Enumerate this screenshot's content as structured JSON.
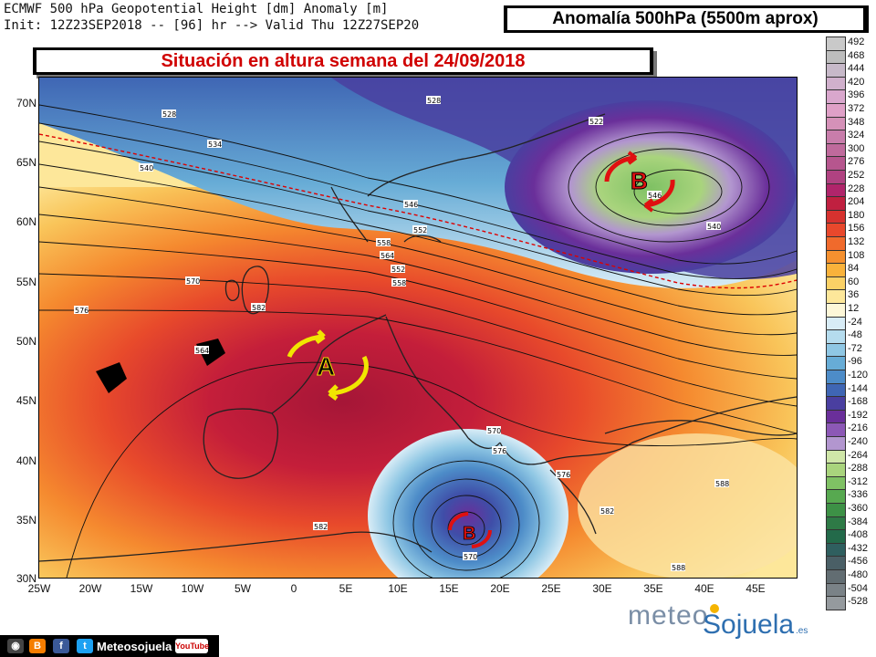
{
  "header": {
    "line1": "ECMWF 500 hPa Geopotential Height [dm] Anomaly [m]",
    "line2": "Init: 12Z23SEP2018 -- [96] hr --> Valid Thu 12Z27SEP20",
    "title": "Anomalía 500hPa (5500m aprox)",
    "subtitle": "Situación en altura semana del 24/09/2018"
  },
  "map": {
    "lat_ticks": [
      "70N",
      "65N",
      "60N",
      "55N",
      "50N",
      "45N",
      "40N",
      "35N",
      "30N"
    ],
    "lon_ticks": [
      "25W",
      "20W",
      "15W",
      "10W",
      "5W",
      "0",
      "5E",
      "10E",
      "15E",
      "20E",
      "25E",
      "30E",
      "35E",
      "40E",
      "45E"
    ],
    "contour_labels": [
      "528",
      "534",
      "540",
      "546",
      "552",
      "558",
      "564",
      "570",
      "576",
      "582",
      "528",
      "522",
      "540",
      "546",
      "552",
      "558",
      "564",
      "570",
      "576",
      "582",
      "588",
      "570",
      "576",
      "582",
      "588"
    ],
    "systems": [
      {
        "label": "A",
        "type": "high",
        "color": "#f1e600"
      },
      {
        "label": "B",
        "type": "low",
        "color": "#e01010"
      },
      {
        "label": "B",
        "type": "low",
        "color": "#e01010"
      }
    ]
  },
  "scale": {
    "labels": [
      "492",
      "468",
      "444",
      "420",
      "396",
      "372",
      "348",
      "324",
      "300",
      "276",
      "252",
      "228",
      "204",
      "180",
      "156",
      "132",
      "108",
      "84",
      "60",
      "36",
      "12",
      "-24",
      "-48",
      "-72",
      "-96",
      "-120",
      "-144",
      "-168",
      "-192",
      "-216",
      "-240",
      "-264",
      "-288",
      "-312",
      "-336",
      "-360",
      "-384",
      "-408",
      "-432",
      "-456",
      "-480",
      "-504",
      "-528"
    ],
    "colors": [
      "#c9c9c9",
      "#bdbdbd",
      "#c7b9c9",
      "#d0b0cc",
      "#d9a7cd",
      "#dfa0c7",
      "#d591b8",
      "#c87dab",
      "#bf6a9c",
      "#b6568e",
      "#b04281",
      "#b0256b",
      "#c02040",
      "#d6322f",
      "#e8482c",
      "#f06a2c",
      "#f5902f",
      "#f9b23b",
      "#fbd166",
      "#fde79a",
      "#fdf7d8",
      "#d8ecf6",
      "#b5dcee",
      "#8fc7e4",
      "#67acd6",
      "#4d8cc8",
      "#3f66b4",
      "#4a3fa0",
      "#6a2f9a",
      "#8c58b6",
      "#b296cf",
      "#cfe6a8",
      "#a9d47d",
      "#7fc164",
      "#57a950",
      "#3d9146",
      "#2e7a46",
      "#236a4a",
      "#2f5f5f",
      "#4a5f66",
      "#626d72",
      "#7a8287",
      "#959a9e"
    ]
  },
  "footer": {
    "brand": "Meteosojuela",
    "icons": [
      "camera-icon",
      "blogger-icon",
      "facebook-icon",
      "twitter-icon",
      "youtube-icon"
    ],
    "youtube": "YouTube"
  },
  "logo": {
    "part1": "meteo",
    "part2": "Sojuela",
    "part3": ".es"
  }
}
